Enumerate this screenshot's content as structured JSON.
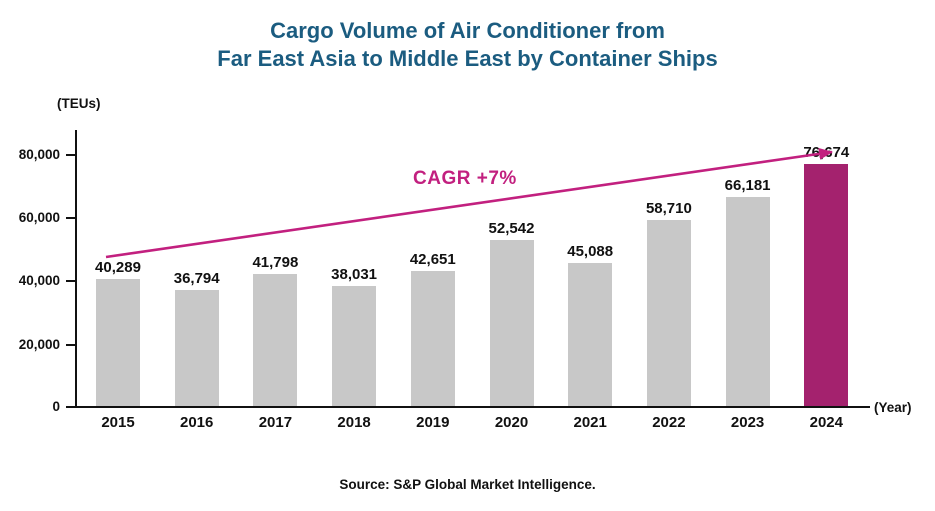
{
  "title": {
    "line1": "Cargo Volume of Air Conditioner from",
    "line2": "Far East Asia to Middle East by Container Ships"
  },
  "axis": {
    "y_unit_label": "(TEUs)",
    "x_unit_label": "(Year)",
    "y_ticks": [
      "80,000",
      "60,000",
      "40,000",
      "20,000",
      "0"
    ]
  },
  "annotation": {
    "cagr_label": "CAGR +7%"
  },
  "source": "Source: S&P Global Market Intelligence.",
  "colors": {
    "title": "#1B5C80",
    "bar": "#C8C8C8",
    "bar_highlight": "#A4226E",
    "accent": "#C2207F",
    "axis": "#111111"
  },
  "chart_data": {
    "type": "bar",
    "title": "Cargo Volume of Air Conditioner from Far East Asia to Middle East by Container Ships",
    "xlabel": "(Year)",
    "ylabel": "(TEUs)",
    "ylim": [
      0,
      80000
    ],
    "y_tick_values": [
      0,
      20000,
      40000,
      60000,
      80000
    ],
    "grid": false,
    "legend": "none",
    "categories": [
      "2015",
      "2016",
      "2017",
      "2018",
      "2019",
      "2020",
      "2021",
      "2022",
      "2023",
      "2024"
    ],
    "values": [
      40289,
      36794,
      41798,
      38031,
      42651,
      52542,
      45088,
      58710,
      66181,
      76674
    ],
    "value_labels": [
      "40,289",
      "36,794",
      "41,798",
      "38,031",
      "42,651",
      "52,542",
      "45,088",
      "58,710",
      "66,181",
      "76,674"
    ],
    "highlight_index": 9,
    "annotation": "CAGR +7%"
  }
}
